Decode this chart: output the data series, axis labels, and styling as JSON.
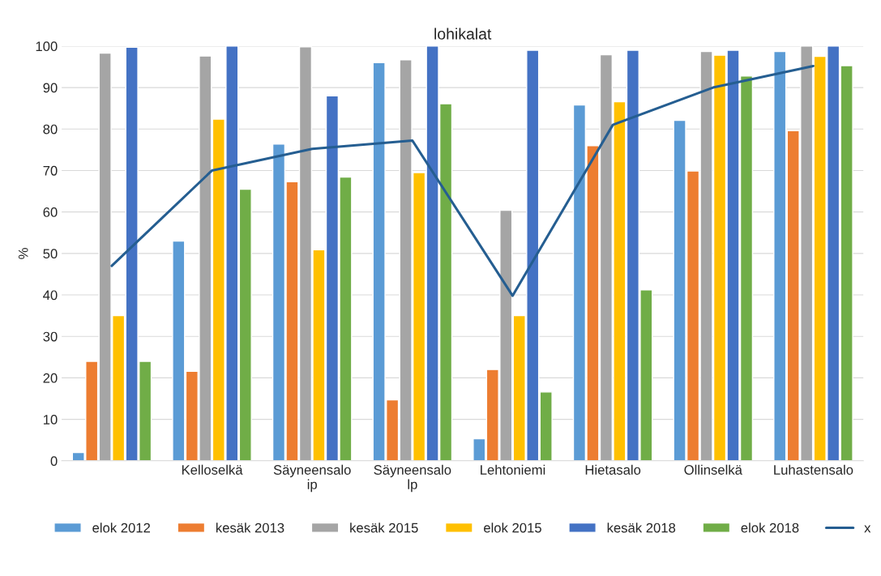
{
  "chart_data": {
    "type": "bar",
    "title": "lohikalat",
    "ylabel": "%",
    "categories": [
      null,
      "Kelloselkä",
      "Säyneensalo\nip",
      "Säyneensalo\nlp",
      "Lehtoniemi",
      "Hietasalo",
      "Ollinselkä",
      "Luhastensalo"
    ],
    "series": [
      {
        "name": "elok 2012",
        "color": "#5b9bd5",
        "values": [
          2,
          53,
          76.4,
          96,
          5.3,
          85.8,
          82.1,
          98.7
        ]
      },
      {
        "name": "kesäk 2013",
        "color": "#ed7d31",
        "values": [
          24,
          21.6,
          67.3,
          14.7,
          22,
          76,
          69.9,
          79.6
        ]
      },
      {
        "name": "kesäk 2015",
        "color": "#a5a5a5",
        "values": [
          98.3,
          97.6,
          99.8,
          96.7,
          60.4,
          97.9,
          98.7,
          100
        ]
      },
      {
        "name": "elok 2015",
        "color": "#ffc000",
        "values": [
          35,
          82.4,
          50.9,
          69.5,
          35,
          86.6,
          97.8,
          97.5
        ]
      },
      {
        "name": "kesäk 2018",
        "color": "#4472c4",
        "values": [
          99.7,
          100,
          88,
          100,
          99,
          99,
          99,
          100
        ]
      },
      {
        "name": "elok 2018",
        "color": "#70ad47",
        "values": [
          24,
          65.5,
          68.4,
          86.1,
          16.6,
          41.2,
          92.8,
          95.3
        ]
      },
      {
        "name": "x",
        "type": "line",
        "color": "#255e91",
        "values": [
          47,
          70,
          75.2,
          77.2,
          39.8,
          81,
          90,
          95.2
        ]
      }
    ],
    "ylim": [
      0,
      100
    ],
    "yticks": [
      0,
      10,
      20,
      30,
      40,
      50,
      60,
      70,
      80,
      90,
      100
    ],
    "grid": "y",
    "legend": "bottom"
  }
}
